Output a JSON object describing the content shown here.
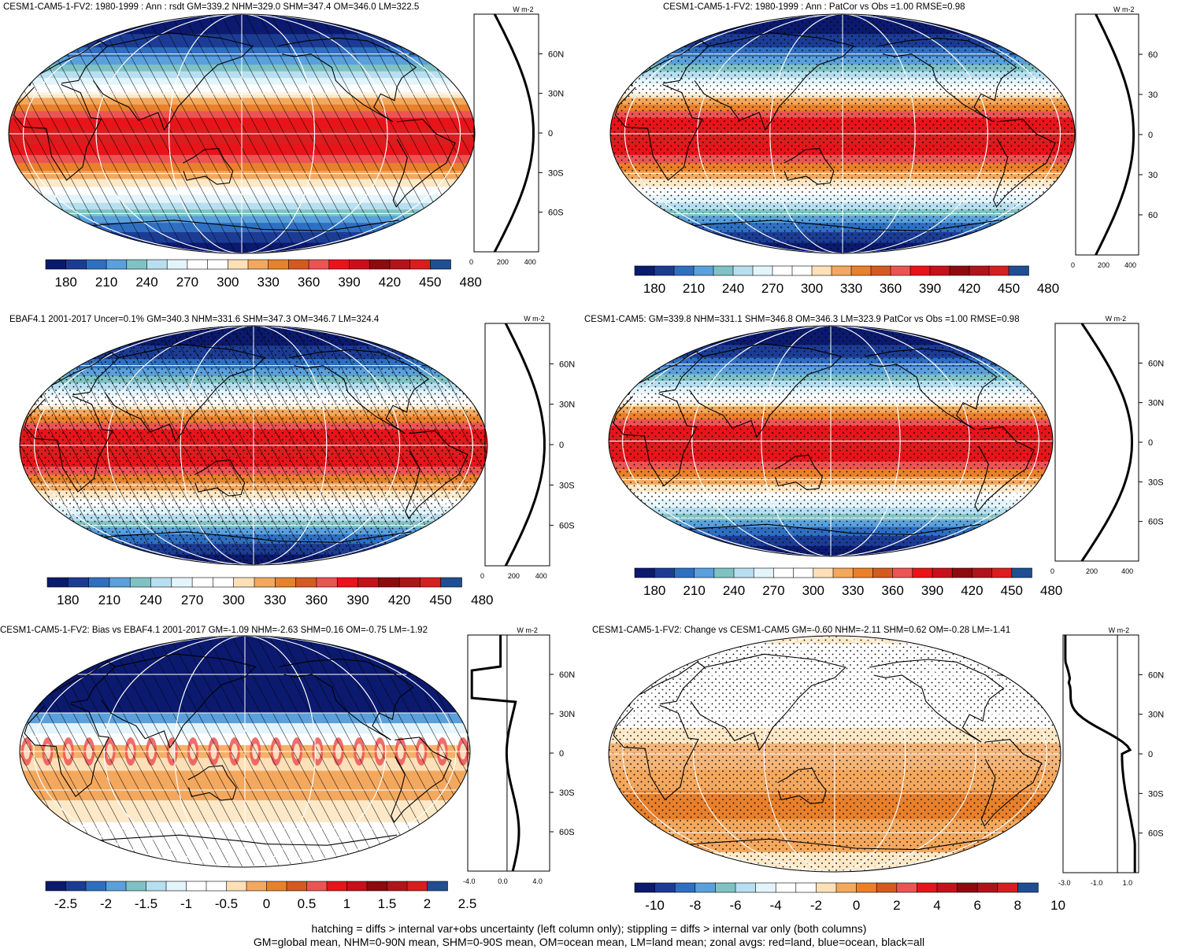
{
  "panels": [
    {
      "title": "CESM1-CAM5-1-FV2: 1980-1999 : Ann : rsdt GM=339.2 NHM=329.0 SHM=347.4 OM=346.0 LM=322.5",
      "style": "abs",
      "overlay": "hatch",
      "pattern": "abs",
      "zonal": {
        "unit": "W m-2",
        "xticks": [
          "0",
          "200",
          "400"
        ],
        "lat_side": "right",
        "lat_labels": [
          "60N",
          "30N",
          "0",
          "30S",
          "60S"
        ]
      },
      "colorbar": {
        "labels": [
          "180",
          "210",
          "240",
          "270",
          "300",
          "330",
          "360",
          "390",
          "420",
          "450",
          "480"
        ]
      }
    },
    {
      "title": "CESM1-CAM5-1-FV2: 1980-1999 : Ann : PatCor vs Obs =1.00 RMSE=0.98",
      "style": "abs",
      "overlay": "stipple",
      "pattern": "abs",
      "zonal": {
        "unit": "W m-2",
        "xticks": [
          "0",
          "200",
          "400"
        ],
        "lat_side": "right",
        "lat_labels": [
          "60",
          "30",
          "0",
          "30",
          "60"
        ]
      },
      "colorbar": {
        "labels": [
          "180",
          "210",
          "240",
          "270",
          "300",
          "330",
          "360",
          "390",
          "420",
          "450",
          "480"
        ]
      }
    },
    {
      "title": "EBAF4.1 2001-2017 Uncer=0.1% GM=340.3 NHM=331.6 SHM=347.3 OM=346.7 LM=324.4",
      "style": "abs",
      "overlay": "hatch-stipple",
      "pattern": "abs",
      "zonal": {
        "unit": "W m-2",
        "xticks": [
          "0",
          "200",
          "400"
        ],
        "lat_side": "right",
        "lat_labels": [
          "60N",
          "30N",
          "0",
          "30S",
          "60S"
        ]
      },
      "colorbar": {
        "labels": [
          "180",
          "210",
          "240",
          "270",
          "300",
          "330",
          "360",
          "390",
          "420",
          "450",
          "480"
        ]
      }
    },
    {
      "title": "CESM1-CAM5: GM=339.8 NHM=331.1 SHM=346.8 OM=346.3 LM=323.9 PatCor vs Obs =1.00 RMSE=0.98",
      "style": "abs",
      "overlay": "stipple",
      "pattern": "abs",
      "zonal": {
        "unit": "W m-2",
        "xticks": [
          "0",
          "200",
          "400"
        ],
        "lat_side": "right",
        "lat_labels": [
          "60N",
          "30N",
          "0",
          "30S",
          "60S"
        ]
      },
      "colorbar": {
        "labels": [
          "180",
          "210",
          "240",
          "270",
          "300",
          "330",
          "360",
          "390",
          "420",
          "450",
          "480"
        ]
      }
    },
    {
      "title": "CESM1-CAM5-1-FV2: Bias vs EBAF4.1 2001-2017 GM=-1.09 NHM=-2.63 SHM=0.16 OM=-0.75 LM=-1.92",
      "style": "bias",
      "overlay": "hatch",
      "pattern": "bias",
      "zonal": {
        "unit": "W m-2",
        "xticks": [
          "-4.0",
          "0.0",
          "4.0"
        ],
        "lat_side": "right",
        "lat_labels": [
          "60N",
          "30N",
          "0",
          "30S",
          "60S"
        ]
      },
      "colorbar": {
        "labels": [
          "-2.5",
          "-2",
          "-1.5",
          "-1",
          "-0.5",
          "0",
          "0.5",
          "1",
          "1.5",
          "2",
          "2.5"
        ]
      }
    },
    {
      "title": "CESM1-CAM5-1-FV2: Change vs CESM1-CAM5 GM=-0.60 NHM=-2.11 SHM=0.62 OM=-0.28 LM=-1.41",
      "style": "change",
      "overlay": "stipple",
      "pattern": "change",
      "zonal": {
        "unit": "W m-2",
        "xticks": [
          "-3.0",
          "-1.0",
          "1.0"
        ],
        "lat_side": "right",
        "lat_labels": [
          "60N",
          "30N",
          "0",
          "30S",
          "60S"
        ]
      },
      "colorbar": {
        "labels": [
          "-10",
          "-8",
          "-6",
          "-4",
          "-2",
          "0",
          "2",
          "4",
          "6",
          "8",
          "10"
        ]
      }
    }
  ],
  "colors": {
    "palette": [
      "#0b1a6e",
      "#1c3c94",
      "#2f6fc1",
      "#5aa0dc",
      "#7fc2c4",
      "#b8dff0",
      "#e3f4fb",
      "#ffffff",
      "#fde9c8",
      "#f6b06a",
      "#e8802c",
      "#d55a1f",
      "#ec5454",
      "#e8141a",
      "#c8101a",
      "#8e0a0e",
      "#b0141a",
      "#d81e1e",
      "#e63a30",
      "#1f4e93"
    ],
    "continent": "#000000",
    "grid": "#ffffff"
  },
  "footer": {
    "line1": "hatching = diffs > internal var+obs uncertainty (left column only); stippling = diffs > internal var only (both columns)",
    "line2": "GM=global mean, NHM=0-90N mean, SHM=0-90S mean, OM=ocean mean, LM=land mean; zonal avgs: red=land, blue=ocean, black=all"
  }
}
